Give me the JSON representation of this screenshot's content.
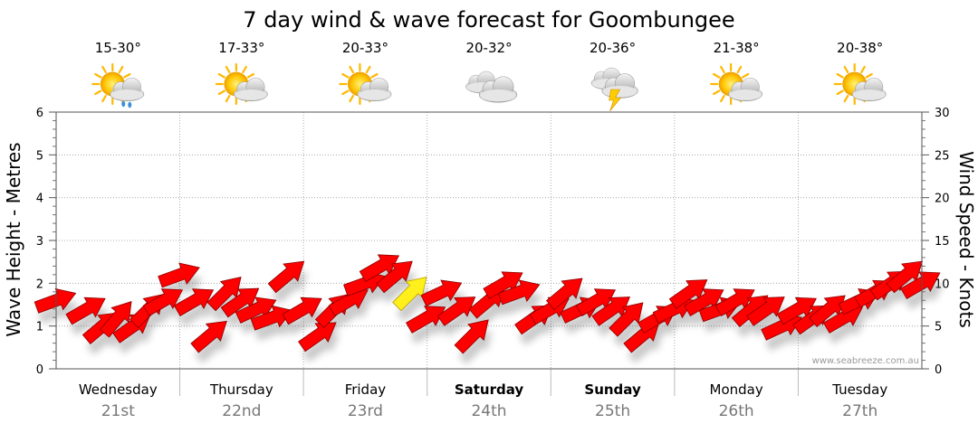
{
  "chart_data": {
    "type": "line",
    "title": "7 day wind & wave forecast for Goombungee",
    "ylabel_left": "Wave Height - Metres",
    "ylabel_right": "Wind Speed - Knots",
    "ylim_left": [
      0,
      6
    ],
    "ylim_right": [
      0,
      30
    ],
    "yticks_left": [
      "0",
      "1",
      "2",
      "3",
      "4",
      "5",
      "6"
    ],
    "yticks_right": [
      "0",
      "5",
      "10",
      "15",
      "20",
      "25",
      "30"
    ],
    "watermark": "www.seabreeze.com.au",
    "days": [
      {
        "weekday": "Wednesday",
        "date": "21st",
        "temp": "15-30°",
        "icon": "partly-cloudy-showers-icon",
        "bold": false
      },
      {
        "weekday": "Thursday",
        "date": "22nd",
        "temp": "17-33°",
        "icon": "partly-cloudy-icon",
        "bold": false
      },
      {
        "weekday": "Friday",
        "date": "23rd",
        "temp": "20-33°",
        "icon": "partly-cloudy-icon",
        "bold": false
      },
      {
        "weekday": "Saturday",
        "date": "24th",
        "temp": "20-32°",
        "icon": "cloudy-icon",
        "bold": true
      },
      {
        "weekday": "Sunday",
        "date": "25th",
        "temp": "20-36°",
        "icon": "thunderstorm-icon",
        "bold": true
      },
      {
        "weekday": "Monday",
        "date": "26th",
        "temp": "21-38°",
        "icon": "partly-cloudy-icon",
        "bold": false
      },
      {
        "weekday": "Tuesday",
        "date": "27th",
        "temp": "20-38°",
        "icon": "partly-cloudy-icon",
        "bold": false
      }
    ],
    "wind_series": {
      "name": "Wind Speed",
      "x_hours": [
        0,
        6,
        9,
        12,
        15,
        18,
        21,
        24,
        27,
        30,
        33,
        36,
        39,
        42,
        45,
        48,
        51,
        54,
        57,
        60,
        63,
        66,
        69,
        72,
        75,
        78,
        81,
        84,
        87,
        90,
        93,
        96,
        99,
        102,
        105,
        108,
        111,
        114,
        117,
        120,
        123,
        126,
        129,
        132,
        135,
        138,
        141,
        144,
        147,
        150,
        153,
        156,
        159,
        162,
        165,
        168
      ],
      "knots": [
        8,
        7,
        5,
        6,
        5,
        7,
        8,
        11,
        8,
        4,
        9,
        8,
        7,
        6,
        11,
        7,
        4,
        7,
        8,
        10,
        12,
        11,
        9,
        6,
        9,
        7,
        4,
        8,
        10,
        9,
        6,
        7,
        9,
        7,
        8,
        7,
        6,
        4,
        6,
        7,
        9,
        8,
        7,
        8,
        7,
        7,
        5,
        7,
        6,
        7,
        6,
        8,
        9,
        10,
        11,
        10
      ],
      "direction_deg": [
        250,
        240,
        230,
        220,
        235,
        225,
        240,
        250,
        240,
        230,
        225,
        235,
        245,
        250,
        230,
        240,
        235,
        225,
        240,
        250,
        240,
        230,
        225,
        240,
        245,
        235,
        225,
        230,
        240,
        250,
        235,
        240,
        230,
        245,
        240,
        235,
        225,
        230,
        240,
        245,
        235,
        240,
        250,
        240,
        230,
        235,
        245,
        240,
        235,
        230,
        240,
        245,
        240,
        235,
        230,
        240
      ],
      "highlight_index": 22
    }
  }
}
